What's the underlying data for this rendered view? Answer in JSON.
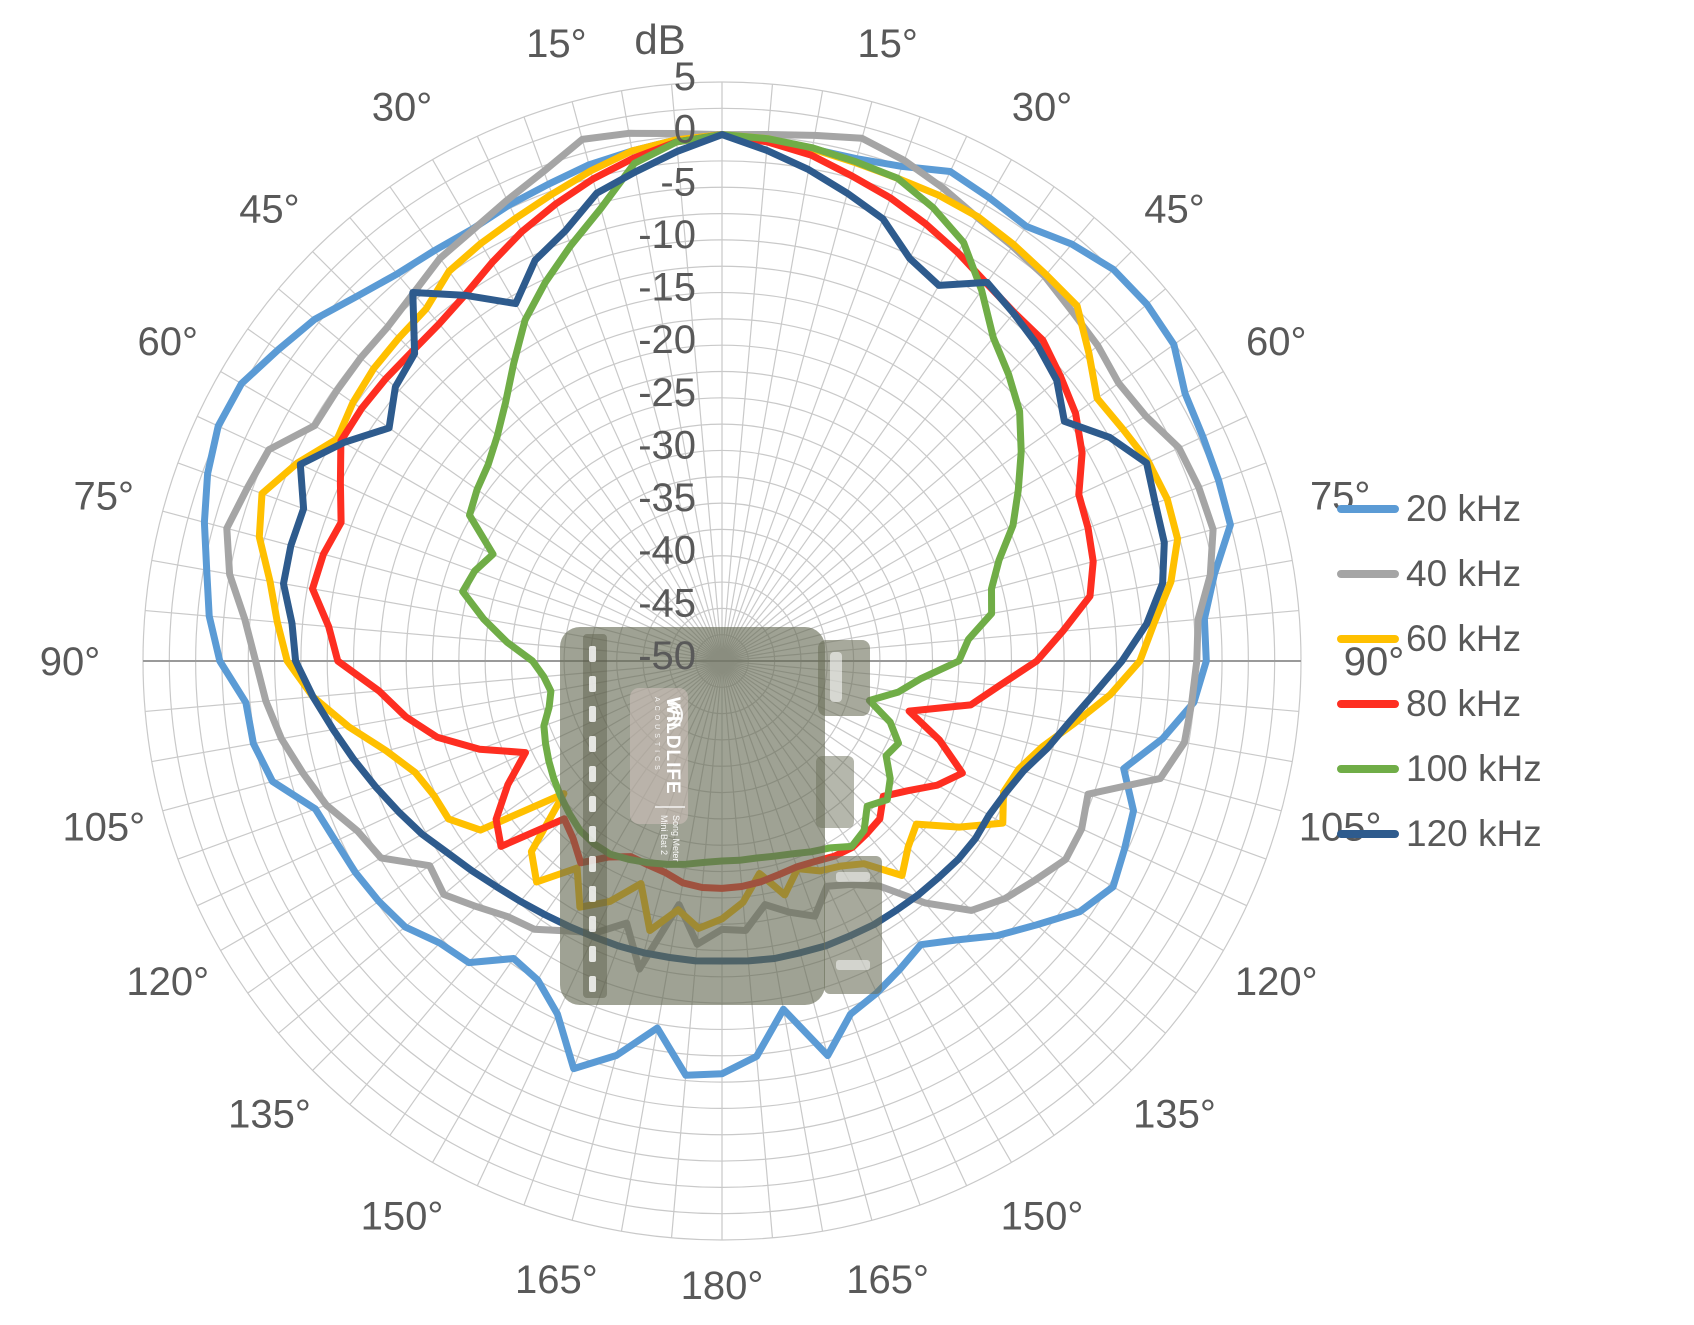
{
  "chart_data": {
    "type": "line",
    "subtype": "polar-directivity",
    "title": "dB",
    "radial_axis": {
      "units": "dB",
      "min": -50,
      "max": 5,
      "ring_step_db": 2.5,
      "tick_labels": [
        5,
        0,
        -5,
        -10,
        -15,
        -20,
        -25,
        -30,
        -35,
        -40,
        -45,
        -50
      ]
    },
    "angular_axis": {
      "units": "degrees",
      "zero_at": "top",
      "spoke_step_deg": 5,
      "label_step_deg": 15,
      "labels_deg": [
        15,
        30,
        45,
        60,
        75,
        90,
        105,
        120,
        135,
        150,
        165,
        180
      ],
      "labels_text": [
        "15°",
        "30°",
        "45°",
        "60°",
        "75°",
        "90°",
        "105°",
        "120°",
        "135°",
        "150°",
        "165°",
        "180°"
      ],
      "labels_mirrored_both_sides": true
    },
    "legend_position": "right",
    "grid": {
      "ring_color": "#C9C9C9",
      "spoke_color": "#C9C9C9",
      "horizontal_axis_color": "#9A9A9A"
    },
    "text_color": "#595959",
    "angles_deg": [
      -180,
      -175,
      -170,
      -165,
      -160,
      -155,
      -150,
      -145,
      -140,
      -135,
      -130,
      -125,
      -120,
      -115,
      -110,
      -105,
      -100,
      -95,
      -90,
      -85,
      -80,
      -75,
      -70,
      -65,
      -60,
      -55,
      -50,
      -45,
      -40,
      -35,
      -30,
      -25,
      -20,
      -15,
      -10,
      -5,
      0,
      5,
      10,
      15,
      20,
      25,
      30,
      35,
      40,
      45,
      50,
      55,
      60,
      65,
      70,
      75,
      80,
      85,
      90,
      95,
      100,
      105,
      110,
      115,
      120,
      125,
      130,
      135,
      140,
      145,
      150,
      155,
      160,
      165,
      170,
      175,
      180
    ],
    "series": [
      {
        "name": "20 kHz",
        "color": "#5B9BD5",
        "values": [
          -10.8,
          -10.5,
          -14.6,
          -11.2,
          -8.8,
          -13.0,
          -15.0,
          -15.5,
          -12.6,
          -12.1,
          -10.7,
          -10.2,
          -9.8,
          -9.5,
          -8.9,
          -5.8,
          -4.8,
          -4.6,
          -2.3,
          -1.1,
          -0.3,
          0.9,
          2.0,
          2.8,
          2.7,
          1.5,
          0.5,
          -1.0,
          -2.0,
          -2.4,
          -2.6,
          -2.2,
          -1.8,
          -1.2,
          -0.8,
          -0.3,
          0.0,
          -0.3,
          -0.6,
          -0.6,
          0.0,
          1.3,
          0.8,
          0.4,
          1.7,
          2.6,
          2.7,
          2.4,
          0.8,
          0.4,
          0.2,
          0.0,
          -2.5,
          -4.0,
          -4.0,
          -5.0,
          -7.5,
          -10.5,
          -8.4,
          -7.8,
          -7.1,
          -8.5,
          -11.0,
          -13.1,
          -15.4,
          -17.1,
          -16.2,
          -15.2,
          -14.3,
          -11.2,
          -16.4,
          -12.3,
          -10.8
        ]
      },
      {
        "name": "40 kHz",
        "color": "#A5A5A5",
        "values": [
          -24.5,
          -23.0,
          -26.5,
          -19.7,
          -23.5,
          -21.5,
          -20.4,
          -18.9,
          -18.3,
          -17.0,
          -15.5,
          -16.1,
          -12.6,
          -11.8,
          -10.0,
          -8.8,
          -7.5,
          -6.5,
          -5.7,
          -4.5,
          -2.5,
          -1.3,
          -2.0,
          -2.5,
          -5.3,
          -5.3,
          -5.2,
          -5.1,
          -4.4,
          -3.3,
          -2.7,
          -1.7,
          -0.5,
          1.3,
          0.9,
          0.3,
          0.0,
          0.2,
          0.7,
          1.4,
          0.6,
          -0.4,
          -1.4,
          -1.9,
          -2.3,
          -3.0,
          -3.4,
          -4.0,
          -3.5,
          -2.1,
          -1.8,
          -1.7,
          -2.9,
          -4.6,
          -4.9,
          -5.2,
          -5.4,
          -6.9,
          -13.0,
          -12.3,
          -12.3,
          -13.7,
          -14.9,
          -16.5,
          -20.0,
          -23.9,
          -25.5,
          -26.4,
          -24.2,
          -25.3,
          -26.5,
          -24.3,
          -24.5
        ]
      },
      {
        "name": "60 kHz",
        "color": "#FFC000",
        "values": [
          -25.5,
          -24.5,
          -26.0,
          -23.5,
          -27.5,
          -24.8,
          -23.0,
          -26.0,
          -22.6,
          -24.4,
          -30.4,
          -22.0,
          -20.0,
          -19.8,
          -19.0,
          -17.0,
          -14.0,
          -11.0,
          -8.7,
          -7.6,
          -6.4,
          -4.5,
          -3.5,
          -5.5,
          -7.8,
          -7.2,
          -6.8,
          -6.6,
          -6.3,
          -4.8,
          -4.2,
          -3.6,
          -2.8,
          -1.8,
          -0.8,
          -0.3,
          0.0,
          -0.2,
          -0.6,
          -1.0,
          -1.2,
          -1.2,
          -1.3,
          -1.7,
          -2.1,
          -2.3,
          -4.5,
          -6.5,
          -6.0,
          -5.3,
          -5.0,
          -5.2,
          -6.7,
          -8.8,
          -10.3,
          -13.0,
          -16.0,
          -18.5,
          -20.0,
          -20.5,
          -19.2,
          -22.5,
          -25.9,
          -25.0,
          -23.4,
          -26.5,
          -27.5,
          -28.0,
          -29.0,
          -27.0,
          -29.5,
          -27.0,
          -25.5
        ]
      },
      {
        "name": "80 kHz",
        "color": "#FE2E21",
        "values": [
          -28.4,
          -28.4,
          -28.6,
          -29.2,
          -29.4,
          -29.5,
          -28.5,
          -26.6,
          -28.0,
          -28.8,
          -22.6,
          -23.8,
          -26.5,
          -29.4,
          -25.5,
          -22.0,
          -19.5,
          -17.3,
          -13.5,
          -12.5,
          -10.5,
          -10.8,
          -11.5,
          -10.0,
          -8.2,
          -8.2,
          -8.3,
          -8.4,
          -8.2,
          -7.5,
          -6.3,
          -5.0,
          -3.8,
          -2.6,
          -1.5,
          -0.5,
          0.0,
          -0.5,
          -1.2,
          -2.3,
          -3.2,
          -4.2,
          -5.2,
          -6.2,
          -6.8,
          -6.9,
          -8.0,
          -9.0,
          -10.5,
          -12.6,
          -13.0,
          -13.5,
          -14.5,
          -17.5,
          -20.1,
          -23.5,
          -26.0,
          -31.6,
          -28.0,
          -24.8,
          -26.4,
          -28.5,
          -30.0,
          -28.8,
          -28.6,
          -28.4,
          -28.6,
          -29.0,
          -29.2,
          -29.0,
          -28.7,
          -28.5,
          -28.4
        ]
      },
      {
        "name": "100 kHz",
        "color": "#70AD47",
        "values": [
          -31.0,
          -30.8,
          -30.4,
          -30.0,
          -29.6,
          -29.2,
          -28.8,
          -28.8,
          -29.0,
          -29.5,
          -30.0,
          -30.5,
          -31.0,
          -31.5,
          -32.0,
          -33.0,
          -33.5,
          -33.0,
          -32.0,
          -29.5,
          -27.0,
          -24.5,
          -25.0,
          -26.0,
          -22.3,
          -21.6,
          -21.0,
          -19.8,
          -18.0,
          -15.5,
          -12.6,
          -10.3,
          -8.0,
          -5.5,
          -2.0,
          -0.5,
          0.0,
          -0.2,
          -0.5,
          -0.9,
          -1.2,
          -2.5,
          -4.1,
          -7.0,
          -9.9,
          -11.5,
          -13.1,
          -15.3,
          -17.5,
          -19.5,
          -22.0,
          -23.5,
          -24.0,
          -26.5,
          -27.5,
          -31.0,
          -33.0,
          -35.5,
          -33.0,
          -31.5,
          -32.0,
          -30.5,
          -29.5,
          -30.5,
          -29.0,
          -28.5,
          -29.5,
          -30.0,
          -30.5,
          -30.8,
          -31.0,
          -31.0,
          -31.0
        ]
      },
      {
        "name": "120 kHz",
        "color": "#2E5B8D",
        "values": [
          -21.5,
          -21.4,
          -21.4,
          -21.3,
          -21.2,
          -21.1,
          -20.9,
          -20.6,
          -20.2,
          -19.7,
          -19.0,
          -18.2,
          -17.1,
          -16.1,
          -15.0,
          -13.8,
          -12.5,
          -11.0,
          -9.5,
          -9.0,
          -7.7,
          -7.6,
          -7.7,
          -5.8,
          -8.5,
          -11.4,
          -9.5,
          -8.7,
          -4.3,
          -7.6,
          -10.8,
          -8.0,
          -6.5,
          -4.0,
          -2.8,
          -1.4,
          0.0,
          -1.3,
          -2.6,
          -4.0,
          -5.3,
          -7.8,
          -8.8,
          -6.1,
          -6.9,
          -7.6,
          -8.5,
          -10.3,
          -7.5,
          -5.5,
          -6.2,
          -6.5,
          -7.5,
          -9.5,
          -12.0,
          -14.5,
          -16.5,
          -18.0,
          -19.5,
          -20.3,
          -20.7,
          -20.6,
          -20.7,
          -20.9,
          -21.0,
          -21.1,
          -21.1,
          -21.2,
          -21.2,
          -21.3,
          -21.3,
          -21.4,
          -21.5
        ]
      }
    ]
  },
  "overlay_device": {
    "description": "semi-transparent photo of ultrasonic recorder overlaid at plot center",
    "brand_line1": "WILDLIFE",
    "brand_line2": "ACOUSTICS",
    "product_line1": "Song Meter",
    "product_line2": "Mini Bat 2"
  }
}
